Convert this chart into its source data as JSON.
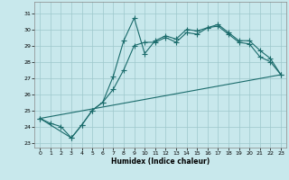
{
  "xlabel": "Humidex (Indice chaleur)",
  "background_color": "#c8e8ec",
  "grid_color": "#9ec8cc",
  "line_color": "#1a6b6b",
  "xlim": [
    -0.5,
    23.5
  ],
  "ylim": [
    22.7,
    31.7
  ],
  "yticks": [
    23,
    24,
    25,
    26,
    27,
    28,
    29,
    30,
    31
  ],
  "xticks": [
    0,
    1,
    2,
    3,
    4,
    5,
    6,
    7,
    8,
    9,
    10,
    11,
    12,
    13,
    14,
    15,
    16,
    17,
    18,
    19,
    20,
    21,
    22,
    23
  ],
  "curve1_x": [
    0,
    1,
    2,
    3,
    4,
    5,
    6,
    7,
    8,
    9,
    10,
    11,
    12,
    13,
    14,
    15,
    16,
    17,
    18,
    19,
    20,
    21,
    22,
    23
  ],
  "curve1_y": [
    24.5,
    24.2,
    24.0,
    23.3,
    24.1,
    25.0,
    25.5,
    27.1,
    29.3,
    30.7,
    28.5,
    29.3,
    29.6,
    29.4,
    30.0,
    29.9,
    30.1,
    30.2,
    29.7,
    29.2,
    29.1,
    28.3,
    28.0,
    27.2
  ],
  "curve2_x": [
    0,
    3,
    4,
    5,
    6,
    7,
    8,
    9,
    10,
    11,
    12,
    13,
    14,
    15,
    16,
    17,
    18,
    19,
    20,
    21,
    22,
    23
  ],
  "curve2_y": [
    24.5,
    23.3,
    24.1,
    25.0,
    25.5,
    26.3,
    27.5,
    29.0,
    29.2,
    29.2,
    29.5,
    29.2,
    29.8,
    29.7,
    30.1,
    30.3,
    29.8,
    29.3,
    29.3,
    28.7,
    28.2,
    27.2
  ],
  "curve3_x": [
    0,
    23
  ],
  "curve3_y": [
    24.5,
    27.2
  ]
}
